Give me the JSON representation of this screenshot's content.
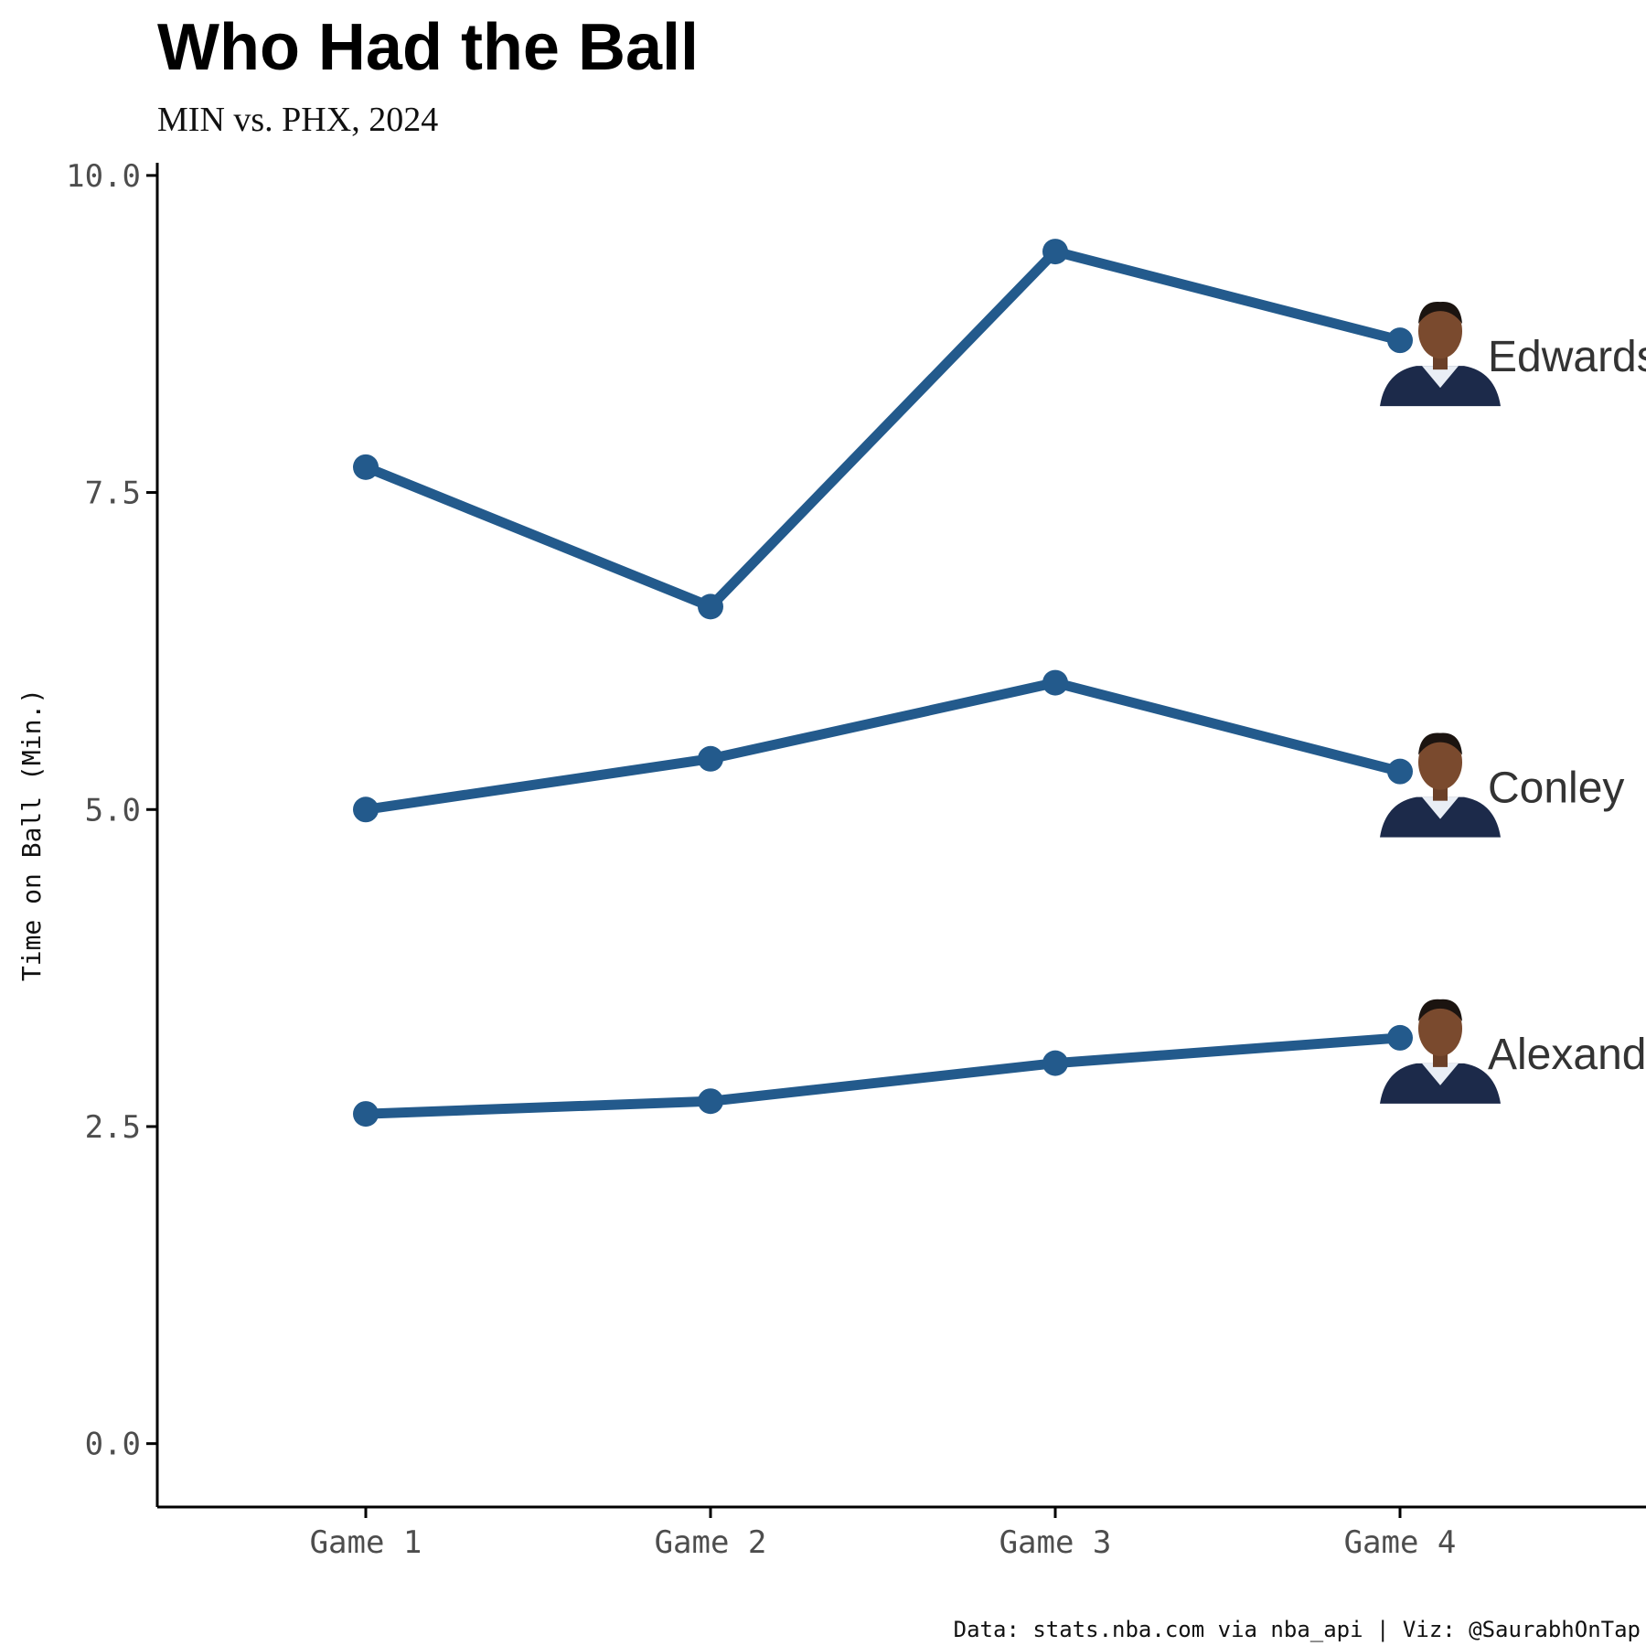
{
  "chart_data": {
    "type": "line",
    "title": "Who Had the Ball",
    "subtitle": "MIN vs. PHX, 2024",
    "ylabel": "Time on Ball (Min.)",
    "xlabel": "",
    "caption": "Data: stats.nba.com via nba_api | Viz: @SaurabhOnTap",
    "categories": [
      "Game 1",
      "Game 2",
      "Game 3",
      "Game 4"
    ],
    "ylim": [
      -0.5,
      10.1
    ],
    "yticks": [
      0.0,
      2.5,
      5.0,
      7.5,
      10.0
    ],
    "ytick_labels": [
      "0.0",
      "2.5",
      "5.0",
      "7.5",
      "10.0"
    ],
    "grid": false,
    "legend": "none",
    "line_color": "#235a8c",
    "series": [
      {
        "name": "Edwards",
        "values": [
          7.7,
          6.6,
          9.4,
          8.7
        ]
      },
      {
        "name": "Conley",
        "values": [
          5.0,
          5.4,
          6.0,
          5.3
        ]
      },
      {
        "name": "Alexander",
        "values": [
          2.6,
          2.7,
          3.0,
          3.2
        ]
      }
    ]
  }
}
